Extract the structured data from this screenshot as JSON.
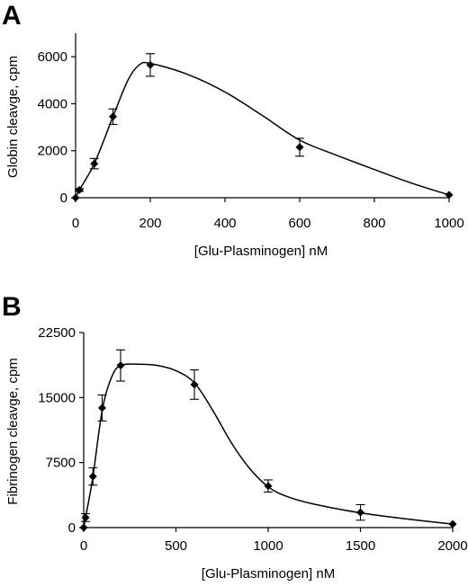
{
  "chart_data": [
    {
      "panel": "A",
      "type": "line",
      "xlabel": "[Glu-Plasminogen] nM",
      "ylabel": "Globin cleavge, cpm",
      "xlim": [
        0,
        1000
      ],
      "ylim": [
        0,
        7000
      ],
      "xticks": [
        0,
        200,
        400,
        600,
        800,
        1000
      ],
      "yticks": [
        0,
        2000,
        4000,
        6000
      ],
      "grid": false,
      "markers": "diamond",
      "points": [
        {
          "x": 0,
          "y": 0,
          "err": 0
        },
        {
          "x": 10,
          "y": 330,
          "err": 60
        },
        {
          "x": 50,
          "y": 1450,
          "err": 220
        },
        {
          "x": 100,
          "y": 3450,
          "err": 330
        },
        {
          "x": 200,
          "y": 5650,
          "err": 480
        },
        {
          "x": 600,
          "y": 2150,
          "err": 380
        },
        {
          "x": 1000,
          "y": 120,
          "err": 0
        }
      ],
      "fit_curve": [
        [
          0,
          0
        ],
        [
          10,
          330
        ],
        [
          50,
          1450
        ],
        [
          100,
          3450
        ],
        [
          140,
          5000
        ],
        [
          170,
          5650
        ],
        [
          200,
          5720
        ],
        [
          300,
          5250
        ],
        [
          400,
          4500
        ],
        [
          500,
          3500
        ],
        [
          600,
          2450
        ],
        [
          700,
          1800
        ],
        [
          800,
          1200
        ],
        [
          900,
          620
        ],
        [
          1000,
          120
        ]
      ]
    },
    {
      "panel": "B",
      "type": "line",
      "xlabel": "[Glu-Plasminogen] nM",
      "ylabel": "Fibrinogen cleavge, cpm",
      "xlim": [
        0,
        2000
      ],
      "ylim": [
        0,
        22500
      ],
      "xticks": [
        0,
        500,
        1000,
        1500,
        2000
      ],
      "yticks": [
        0,
        7500,
        15000,
        22500
      ],
      "grid": false,
      "markers": "diamond",
      "points": [
        {
          "x": 0,
          "y": 0,
          "err": 0
        },
        {
          "x": 10,
          "y": 1150,
          "err": 450
        },
        {
          "x": 50,
          "y": 5900,
          "err": 1000
        },
        {
          "x": 100,
          "y": 13800,
          "err": 1500
        },
        {
          "x": 200,
          "y": 18700,
          "err": 1800
        },
        {
          "x": 600,
          "y": 16500,
          "err": 1700
        },
        {
          "x": 1000,
          "y": 4800,
          "err": 700
        },
        {
          "x": 1500,
          "y": 1750,
          "err": 900
        },
        {
          "x": 2000,
          "y": 400,
          "err": 0
        }
      ],
      "fit_curve": [
        [
          0,
          0
        ],
        [
          10,
          1150
        ],
        [
          50,
          5900
        ],
        [
          100,
          13500
        ],
        [
          150,
          17300
        ],
        [
          200,
          18700
        ],
        [
          300,
          18850
        ],
        [
          400,
          18700
        ],
        [
          500,
          18100
        ],
        [
          600,
          16700
        ],
        [
          700,
          13500
        ],
        [
          800,
          9800
        ],
        [
          900,
          6800
        ],
        [
          1000,
          4700
        ],
        [
          1100,
          3600
        ],
        [
          1250,
          2700
        ],
        [
          1500,
          1700
        ],
        [
          1750,
          1000
        ],
        [
          2000,
          400
        ]
      ]
    }
  ]
}
